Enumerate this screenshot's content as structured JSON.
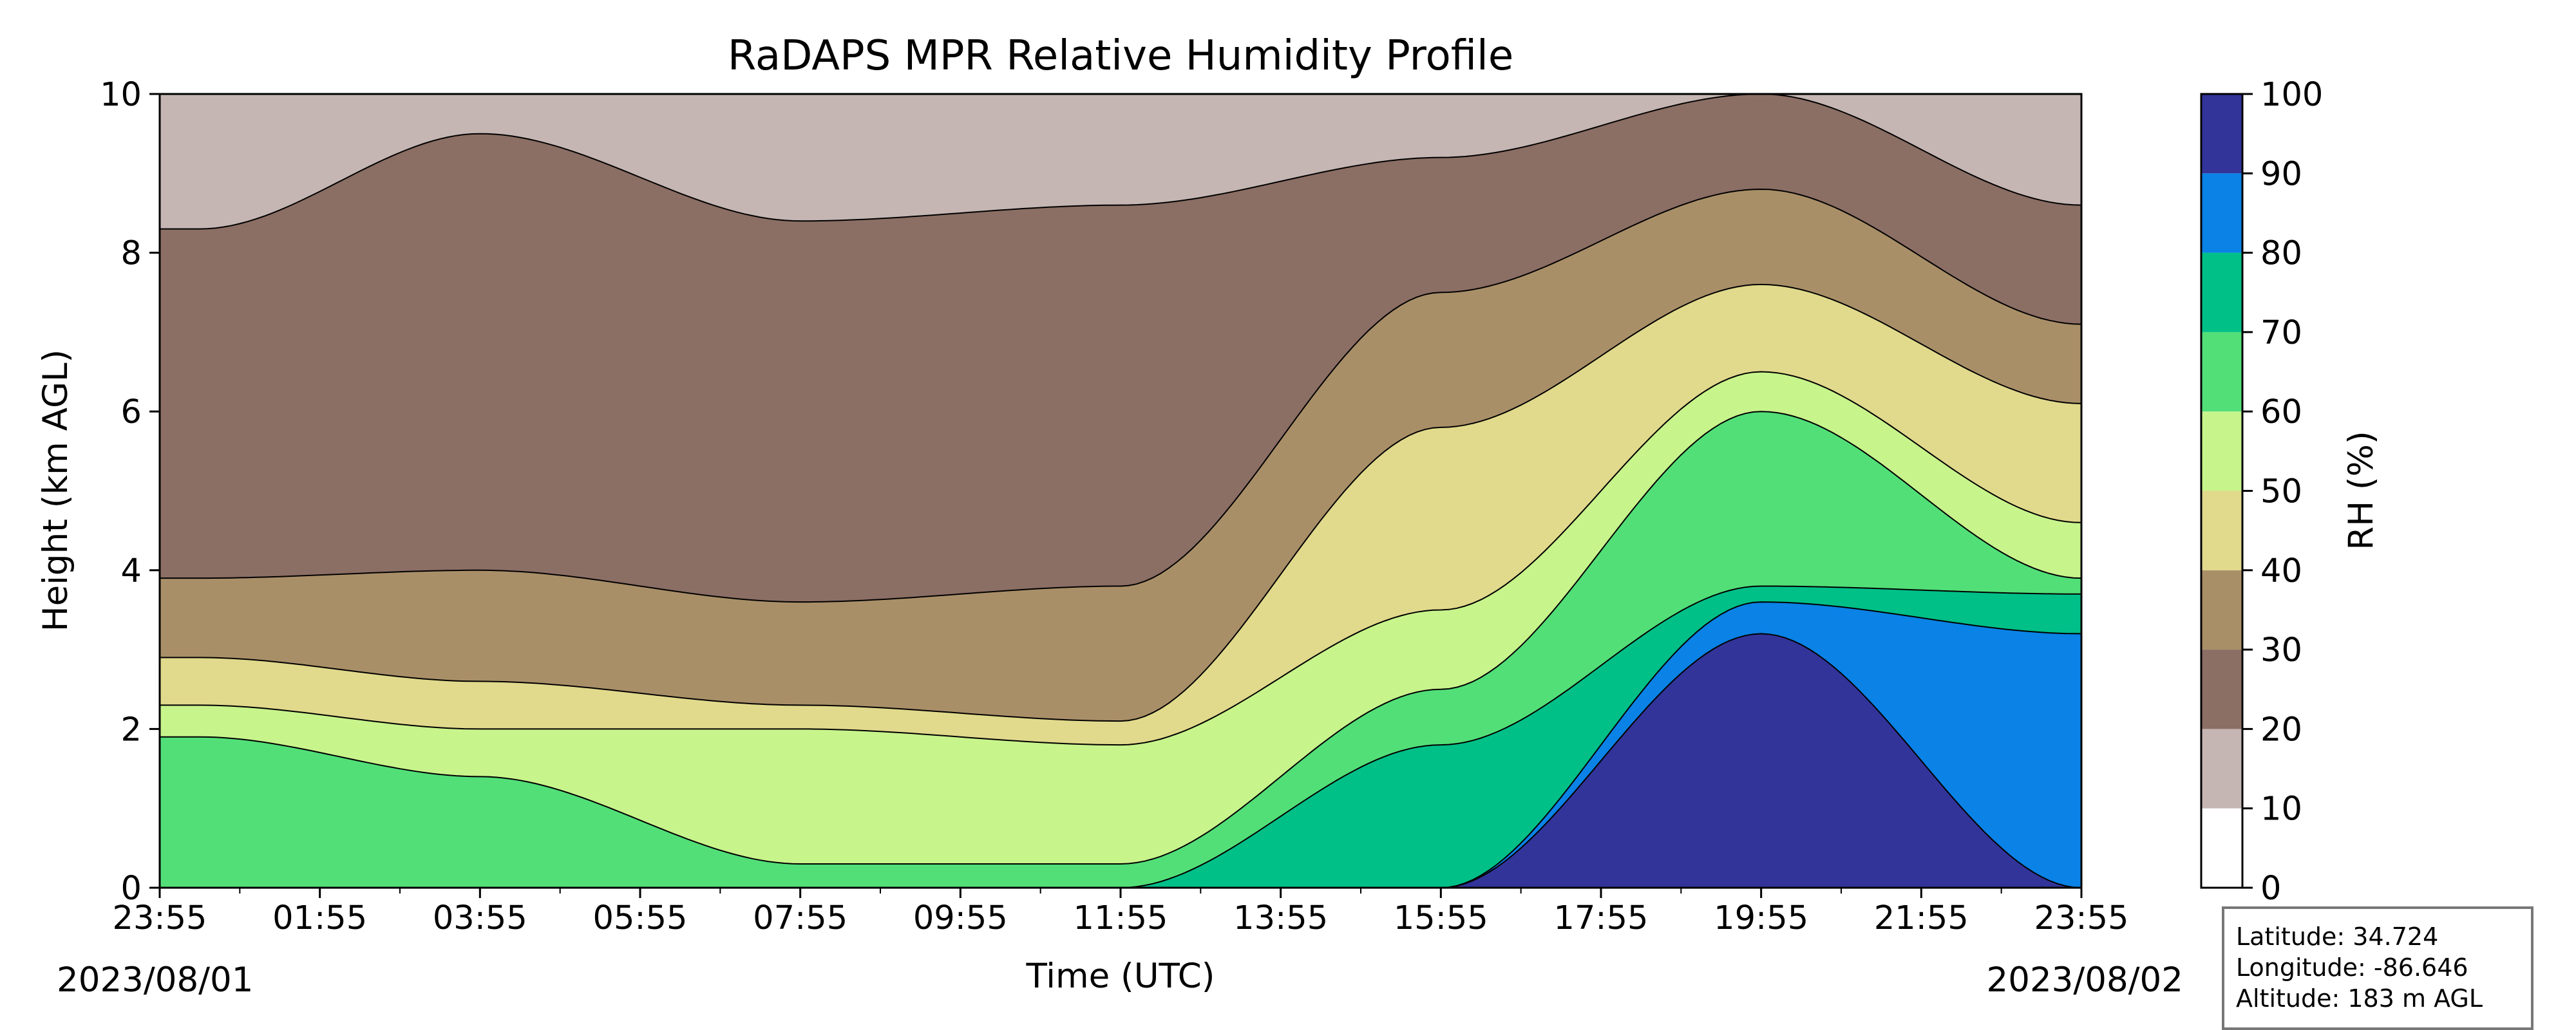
{
  "chart_data": {
    "type": "heatmap",
    "title": "RaDAPS MPR Relative Humidity Profile",
    "xlabel": "Time (UTC)",
    "ylabel": "Height (km AGL)",
    "x_ticks": [
      "23:55",
      "01:55",
      "03:55",
      "05:55",
      "07:55",
      "09:55",
      "11:55",
      "13:55",
      "15:55",
      "17:55",
      "19:55",
      "21:55",
      "23:55"
    ],
    "x_tick_hours": [
      0,
      2,
      4,
      6,
      8,
      10,
      12,
      14,
      16,
      18,
      20,
      22,
      24
    ],
    "date_start": "2023/08/01",
    "date_end": "2023/08/02",
    "x_range_hours": [
      0,
      24
    ],
    "ylim": [
      0,
      10
    ],
    "y_ticks": [
      0,
      2,
      4,
      6,
      8,
      10
    ],
    "colorbar": {
      "label": "RH (%)",
      "levels": [
        0,
        10,
        20,
        30,
        40,
        50,
        60,
        70,
        80,
        90,
        100
      ],
      "colors": [
        "#ffffff",
        "#c5b6b3",
        "#8b6e64",
        "#a98f68",
        "#e1d98c",
        "#c8f48c",
        "#52df78",
        "#00c088",
        "#0a82e6",
        "#32349a"
      ]
    },
    "profile_summary": [
      {
        "hour": 0.5,
        "rh_20": 8.3,
        "rh_30": 3.9,
        "rh_40": 2.9,
        "rh_50": 2.3,
        "rh_60": 1.9,
        "rh_70": null,
        "rh_80": null,
        "rh_90": null
      },
      {
        "hour": 4,
        "rh_20": 9.5,
        "rh_30": 4.0,
        "rh_40": 2.6,
        "rh_50": 2.0,
        "rh_60": 1.4,
        "rh_70": null,
        "rh_80": null,
        "rh_90": null
      },
      {
        "hour": 8,
        "rh_20": 8.4,
        "rh_30": 3.6,
        "rh_40": 2.3,
        "rh_50": 2.0,
        "rh_60": 0.3,
        "rh_70": null,
        "rh_80": null,
        "rh_90": null
      },
      {
        "hour": 12,
        "rh_20": 8.6,
        "rh_30": 3.8,
        "rh_40": 2.1,
        "rh_50": 1.8,
        "rh_60": 0.3,
        "rh_70": null,
        "rh_80": null,
        "rh_90": null
      },
      {
        "hour": 16,
        "rh_20": 9.2,
        "rh_30": 7.5,
        "rh_40": 5.8,
        "rh_50": 3.5,
        "rh_60": 2.5,
        "rh_70": 1.8,
        "rh_80": null,
        "rh_90": null
      },
      {
        "hour": 20,
        "rh_20": 10.0,
        "rh_30": 8.8,
        "rh_40": 7.6,
        "rh_50": 6.5,
        "rh_60": 6.0,
        "rh_70": 3.8,
        "rh_80": 3.6,
        "rh_90": 3.2
      },
      {
        "hour": 24,
        "rh_20": 8.6,
        "rh_30": 7.1,
        "rh_40": 6.1,
        "rh_50": 4.6,
        "rh_60": 3.9,
        "rh_70": 3.7,
        "rh_80": 3.2,
        "rh_90": null
      }
    ]
  },
  "info_box": {
    "latitude": "Latitude: 34.724",
    "longitude": "Longitude: -86.646",
    "altitude": "Altitude: 183 m AGL"
  }
}
